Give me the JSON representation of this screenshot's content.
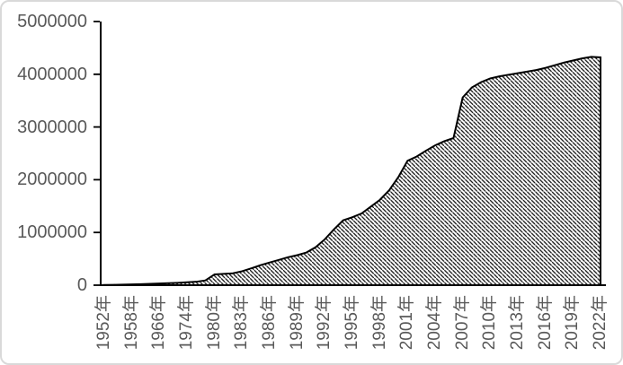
{
  "chart_data": {
    "type": "area",
    "title": "",
    "xlabel": "",
    "ylabel": "",
    "legend": "none",
    "grid": false,
    "fill_style": "black-diagonal-hatch-on-white",
    "ylim": [
      0,
      5000000
    ],
    "y_tick_interval": 1000000,
    "y_ticks": [
      5000000,
      4000000,
      3000000,
      2000000,
      1000000,
      0
    ],
    "y_tick_labels": [
      "5000000",
      "4000000",
      "3000000",
      "2000000",
      "1000000",
      "0"
    ],
    "x_label_every": 3,
    "x_tick_labels": [
      "1952年",
      "1958年",
      "1966年",
      "1974年",
      "1980年",
      "1983年",
      "1986年",
      "1989年",
      "1992年",
      "1995年",
      "1998年",
      "2001年",
      "2004年",
      "2007年",
      "2010年",
      "2013年",
      "2016年",
      "2019年",
      "2022年"
    ],
    "categories": [
      "1952",
      "1954",
      "1956",
      "1958",
      "1960",
      "1963",
      "1966",
      "1969",
      "1971",
      "1974",
      "1976",
      "1978",
      "1980",
      "1981",
      "1982",
      "1983",
      "1984",
      "1985",
      "1986",
      "1987",
      "1988",
      "1989",
      "1990",
      "1991",
      "1992",
      "1993",
      "1994",
      "1995",
      "1996",
      "1997",
      "1998",
      "1999",
      "2000",
      "2001",
      "2002",
      "2003",
      "2004",
      "2005",
      "2006",
      "2007",
      "2008",
      "2009",
      "2010",
      "2011",
      "2012",
      "2013",
      "2014",
      "2015",
      "2016",
      "2017",
      "2018",
      "2019",
      "2020",
      "2021",
      "2022"
    ],
    "values": [
      5000,
      7000,
      10000,
      15000,
      20000,
      25000,
      32000,
      38000,
      45000,
      55000,
      65000,
      90000,
      205000,
      215000,
      225000,
      265000,
      320000,
      380000,
      430000,
      480000,
      530000,
      570000,
      620000,
      720000,
      870000,
      1060000,
      1230000,
      1290000,
      1360000,
      1490000,
      1620000,
      1800000,
      2050000,
      2360000,
      2440000,
      2550000,
      2650000,
      2730000,
      2790000,
      3560000,
      3750000,
      3850000,
      3920000,
      3960000,
      3990000,
      4020000,
      4050000,
      4080000,
      4120000,
      4170000,
      4220000,
      4260000,
      4300000,
      4330000,
      4320000
    ],
    "colors": {
      "axis": "#000000",
      "series_outline": "#000000",
      "hatch_line": "#161616",
      "fill_background": "#ffffff",
      "tick_label": "#595959",
      "chart_border": "#d9d9d9",
      "background": "#ffffff"
    }
  }
}
